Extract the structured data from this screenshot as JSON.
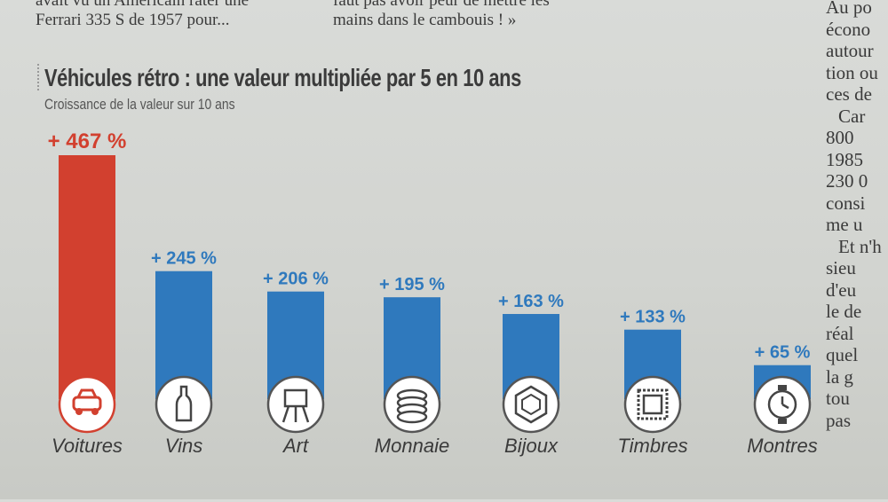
{
  "article": {
    "top_left_line1": "avait vu un Américain rater une",
    "top_left_line2": "Ferrari 335 S de 1957 pour...",
    "top_right_line1": "faut pas avoir peur de mettre les",
    "top_right_line2": "mains dans le cambouis ! »",
    "side_column": [
      "Au po",
      "écono",
      "autour",
      "tion ou",
      "ces de",
      "Car",
      "800",
      "1985",
      "230 0",
      "consi",
      "me u",
      "Et n'h",
      "sieu",
      "d'eu",
      "le de",
      "réal",
      "quel",
      "la g",
      "tou",
      "pas"
    ]
  },
  "colors": {
    "highlight": "#d2402f",
    "bar": "#2f79bd",
    "label": "#3a3a3a"
  },
  "chart_data": {
    "type": "bar",
    "title": "Véhicules rétro : une valeur multipliée par 5 en 10 ans",
    "subtitle": "Croissance de la valeur sur 10 ans",
    "categories": [
      "Voitures",
      "Vins",
      "Art",
      "Monnaie",
      "Bijoux",
      "Timbres",
      "Montres"
    ],
    "values": [
      467,
      245,
      206,
      195,
      163,
      133,
      65
    ],
    "value_labels": [
      "+ 467 %",
      "+ 245 %",
      "+ 206 %",
      "+ 195 %",
      "+ 163 %",
      "+ 133 %",
      "+ 65 %"
    ],
    "icons": [
      "car-icon",
      "wine-bottle-icon",
      "easel-icon",
      "coins-icon",
      "gem-icon",
      "stamp-icon",
      "watch-icon"
    ],
    "highlight_index": 0,
    "ylim": [
      0,
      467
    ],
    "grid": false,
    "legend": "none"
  }
}
